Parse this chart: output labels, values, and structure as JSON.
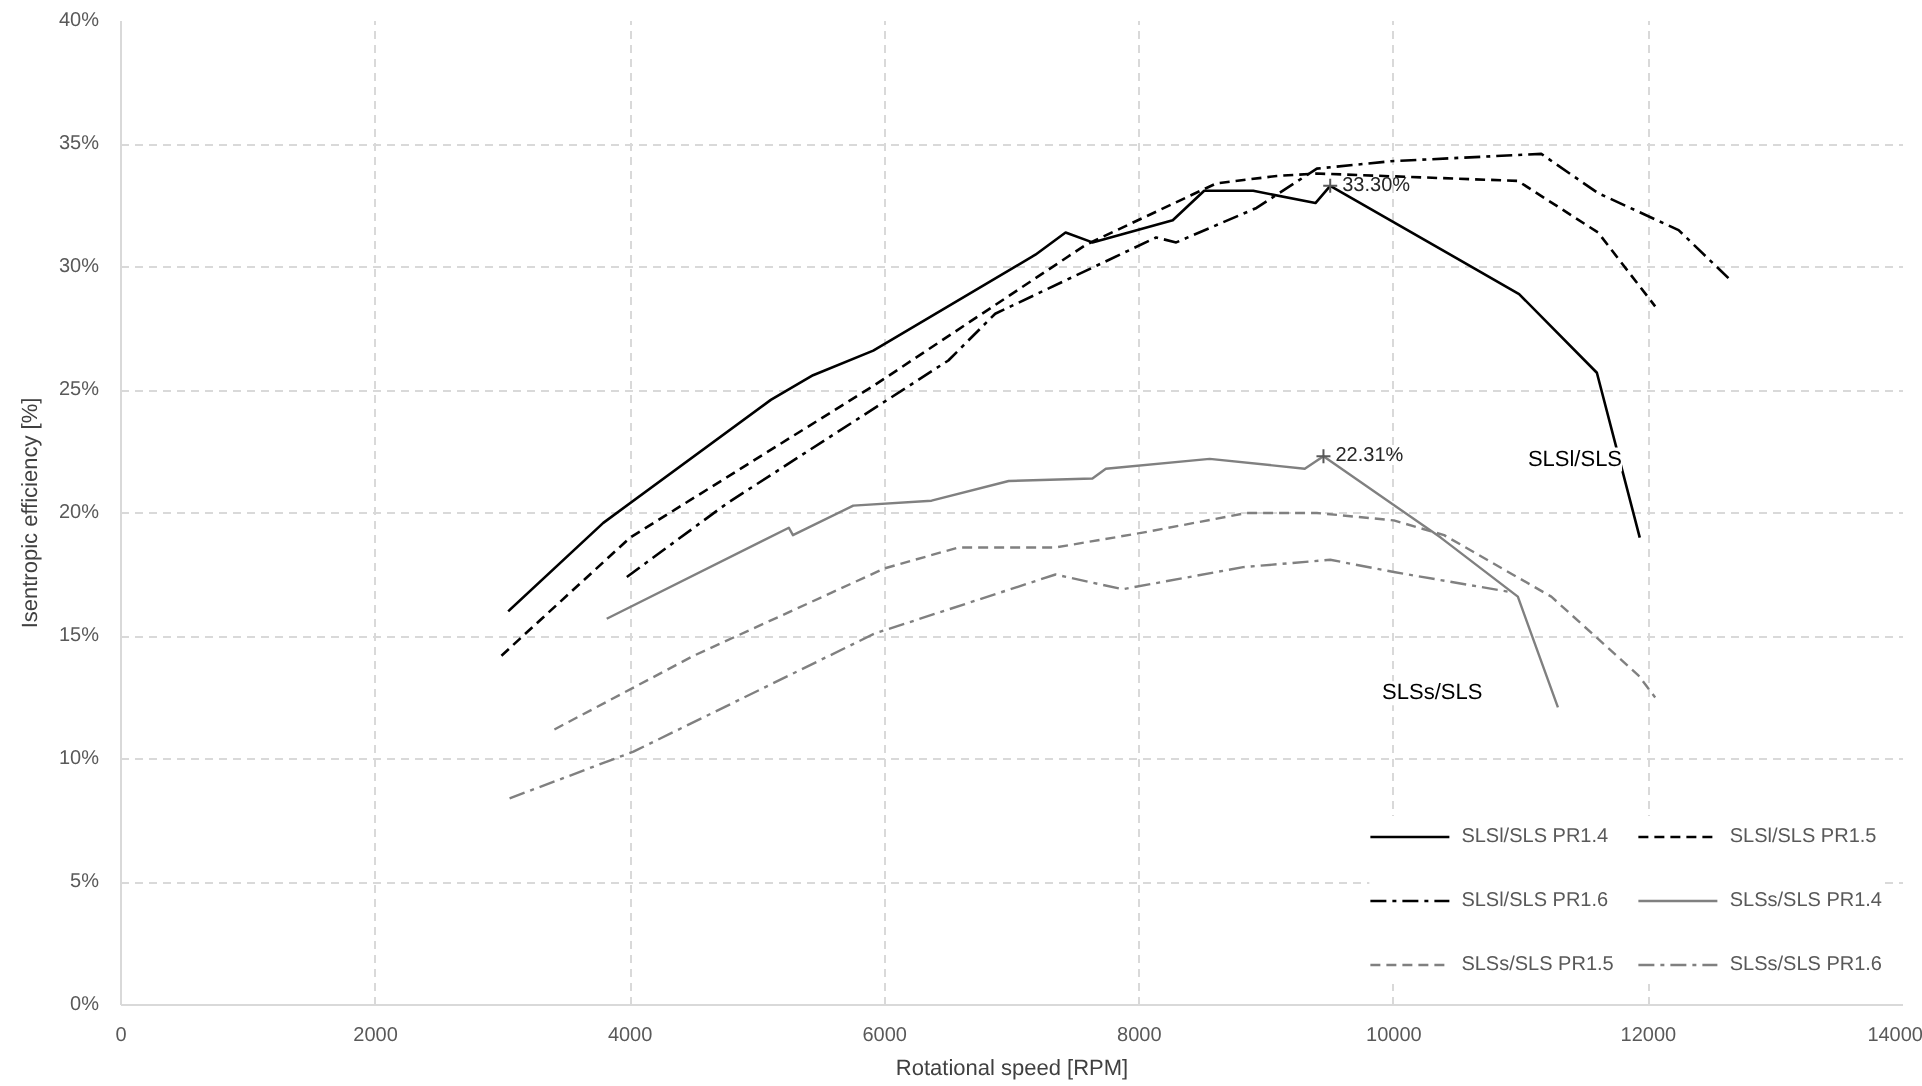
{
  "chart_data": {
    "type": "line",
    "xlabel": "Rotational speed [RPM]",
    "ylabel": "Isentropic efficiency [%]",
    "xlim": [
      0,
      14000
    ],
    "xticks": [
      0,
      2000,
      4000,
      6000,
      8000,
      10000,
      12000,
      14000
    ],
    "ylim": [
      0,
      40
    ],
    "yticks": [
      {
        "value": 0,
        "label": "0%"
      },
      {
        "value": 5,
        "label": "5%"
      },
      {
        "value": 10,
        "label": "10%"
      },
      {
        "value": 15,
        "label": "15%"
      },
      {
        "value": 20,
        "label": "20%"
      },
      {
        "value": 25,
        "label": "25%"
      },
      {
        "value": 30,
        "label": "30%"
      },
      {
        "value": 35,
        "label": "35%"
      },
      {
        "value": 40,
        "label": "40%"
      }
    ],
    "grid": true,
    "legend": "bottom right",
    "marker": "none",
    "series": [
      {
        "name": "SLSl/SLS PR1.4",
        "color": "#000000",
        "line_style": "solid",
        "x": [
          3042,
          3789,
          5105,
          5437,
          5910,
          7184,
          7421,
          7632,
          8263,
          8510,
          8895,
          9384,
          9500,
          10984,
          11595,
          11932
        ],
        "values": [
          16.0,
          19.6,
          24.6,
          25.6,
          26.6,
          30.5,
          31.4,
          31.0,
          31.9,
          33.1,
          33.1,
          32.6,
          33.3,
          28.9,
          25.7,
          19.0
        ]
      },
      {
        "name": "SLSl/SLS PR1.5",
        "color": "#000000",
        "line_style": "dashed",
        "x": [
          2989,
          4000,
          5921,
          7579,
          8605,
          9079,
          9395,
          10974,
          11605,
          12053
        ],
        "values": [
          14.2,
          19.0,
          25.2,
          30.9,
          33.4,
          33.7,
          33.8,
          33.5,
          31.4,
          28.4
        ]
      },
      {
        "name": "SLSl/SLS PR1.6",
        "color": "#000000",
        "line_style": "dashdot",
        "x": [
          3974,
          4763,
          6500,
          6868,
          8132,
          8290,
          8921,
          9395,
          9974,
          11158,
          11605,
          12237,
          12658
        ],
        "values": [
          17.4,
          20.4,
          26.2,
          28.1,
          31.2,
          31.0,
          32.4,
          34.0,
          34.3,
          34.6,
          33.0,
          31.5,
          29.4
        ]
      },
      {
        "name": "SLSs/SLS PR1.4",
        "color": "#808080",
        "line_style": "solid",
        "x": [
          3816,
          5247,
          5279,
          5753,
          6368,
          6974,
          7632,
          7737,
          8553,
          9300,
          9447,
          10368,
          10974,
          11289
        ],
        "values": [
          15.7,
          19.4,
          19.1,
          20.3,
          20.5,
          21.3,
          21.4,
          21.8,
          22.2,
          21.8,
          22.31,
          19.0,
          16.6,
          12.1
        ]
      },
      {
        "name": "SLSs/SLS PR1.5",
        "color": "#808080",
        "line_style": "dashed",
        "x": [
          3405,
          4500,
          6000,
          6579,
          7342,
          8026,
          8842,
          9395,
          10000,
          10395,
          11237,
          11921,
          12053
        ],
        "values": [
          11.2,
          14.2,
          17.75,
          18.6,
          18.6,
          19.2,
          20.0,
          20.0,
          19.7,
          19.1,
          16.6,
          13.4,
          12.5
        ]
      },
      {
        "name": "SLSs/SLS PR1.6",
        "color": "#808080",
        "line_style": "dashdot",
        "x": [
          3053,
          4026,
          5921,
          7342,
          7868,
          8816,
          9500,
          10000,
          10900
        ],
        "values": [
          8.4,
          10.3,
          15.1,
          17.5,
          16.9,
          17.8,
          18.1,
          17.6,
          16.8
        ]
      }
    ],
    "annotations": [
      {
        "text": "33.30%",
        "x": 9500,
        "y": 33.3
      },
      {
        "text": "22.31%",
        "x": 9447,
        "y": 22.31
      },
      "SLSl/SLS",
      "SLSs/SLS"
    ]
  }
}
